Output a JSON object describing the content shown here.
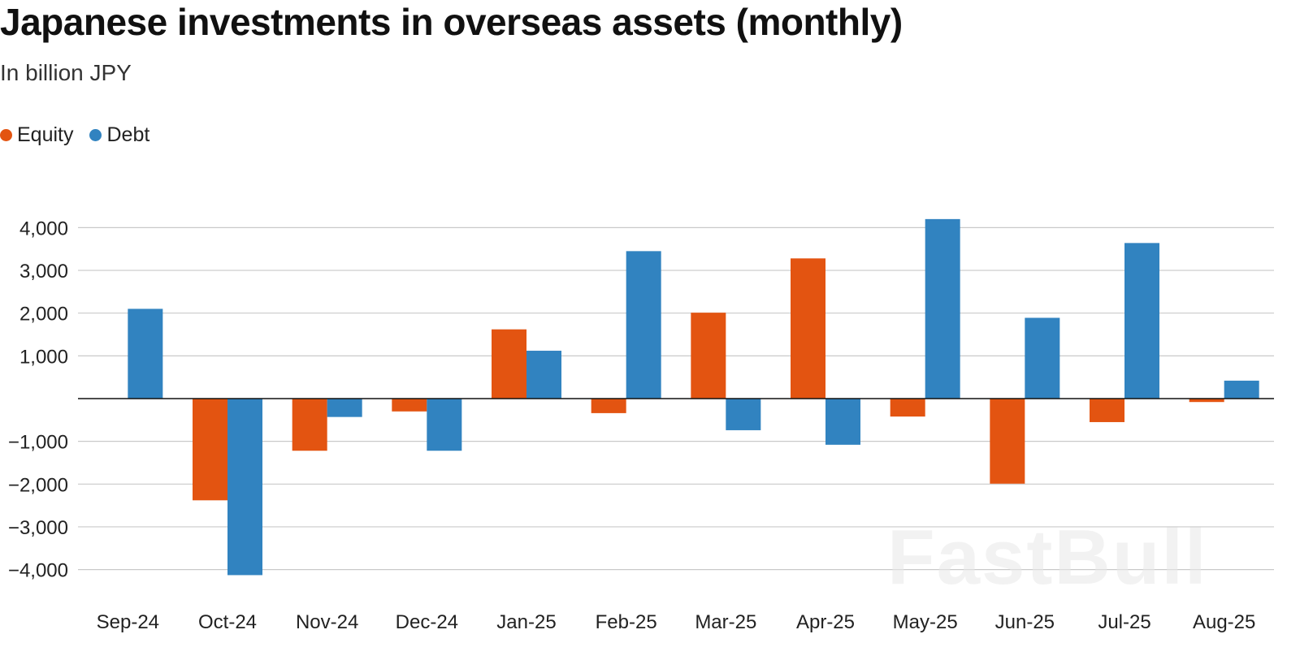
{
  "chart_data": {
    "type": "bar",
    "title": "Japanese investments in overseas assets (monthly)",
    "subtitle": "In billion JPY",
    "categories": [
      "Sep-24",
      "Oct-24",
      "Nov-24",
      "Dec-24",
      "Jan-25",
      "Feb-25",
      "Mar-25",
      "Apr-25",
      "May-25",
      "Jun-25",
      "Jul-25",
      "Aug-25"
    ],
    "series": [
      {
        "name": "Equity",
        "color": "#e35411",
        "values": [
          0,
          -2380,
          -1220,
          -300,
          1620,
          -340,
          2010,
          3280,
          -420,
          -1990,
          -550,
          -80
        ]
      },
      {
        "name": "Debt",
        "color": "#3183c0",
        "values": [
          2100,
          -4130,
          -430,
          -1220,
          1120,
          3450,
          -740,
          -1080,
          4200,
          1890,
          3640,
          420
        ]
      }
    ],
    "y_ticks": [
      {
        "value": 4000,
        "label": "4,000"
      },
      {
        "value": 3000,
        "label": "3,000"
      },
      {
        "value": 2000,
        "label": "2,000"
      },
      {
        "value": 1000,
        "label": "1,000"
      },
      {
        "value": -1000,
        "label": "−1,000"
      },
      {
        "value": -2000,
        "label": "−2,000"
      },
      {
        "value": -3000,
        "label": "−3,000"
      },
      {
        "value": -4000,
        "label": "−4,000"
      }
    ],
    "ylim": [
      -4000,
      4000
    ],
    "grid": true,
    "legend_position": "top-left",
    "xlabel": "",
    "ylabel": ""
  },
  "watermark": "FastBull"
}
